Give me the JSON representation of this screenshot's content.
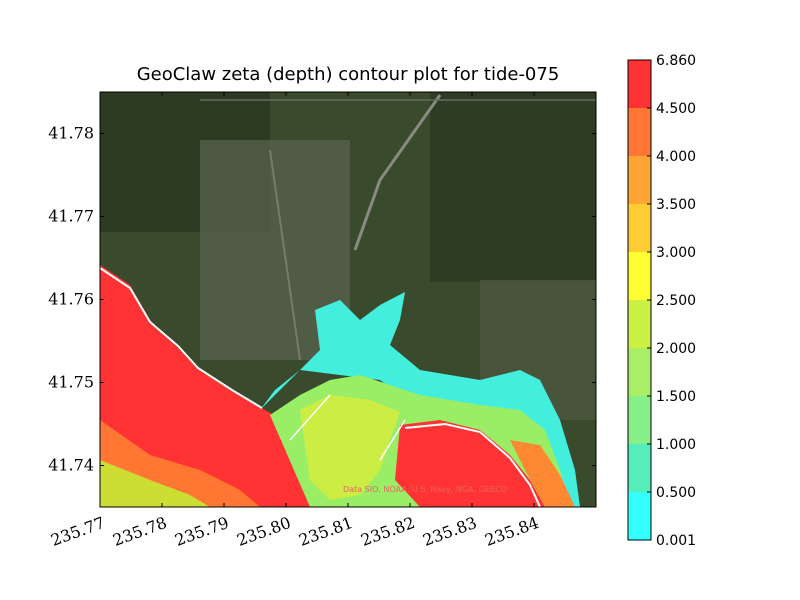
{
  "chart_data": {
    "type": "heatmap",
    "title": "GeoClaw zeta (depth) contour plot for tide-075",
    "x_ticks": [
      "235.77",
      "235.78",
      "235.79",
      "235.80",
      "235.81",
      "235.82",
      "235.83",
      "235.84"
    ],
    "y_ticks": [
      "41.74",
      "41.75",
      "41.76",
      "41.77",
      "41.78"
    ],
    "xlim": [
      235.77,
      235.85
    ],
    "ylim": [
      41.735,
      41.785
    ],
    "colorbar": {
      "levels": [
        "0.001",
        "0.500",
        "1.000",
        "1.500",
        "2.000",
        "2.500",
        "3.000",
        "3.500",
        "4.000",
        "4.500",
        "6.860"
      ],
      "colors": [
        "#33ffff",
        "#55eebb",
        "#88ee88",
        "#aaee66",
        "#ccf044",
        "#ffff33",
        "#ffcc33",
        "#ffa533",
        "#ff7733",
        "#ff3333"
      ]
    },
    "attribution": "Data SIO, NOAA, U.S. Navy, NGA, GEBCO"
  }
}
